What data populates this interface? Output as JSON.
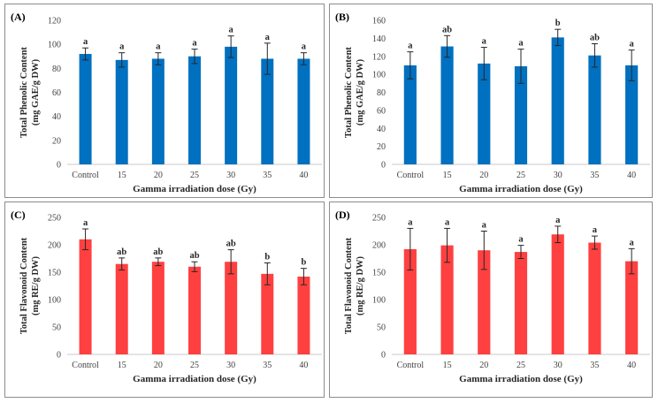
{
  "chart_data": [
    {
      "type": "bar",
      "panel_label": "(A)",
      "categories": [
        "Control",
        "15",
        "20",
        "25",
        "30",
        "35",
        "40"
      ],
      "values": [
        92,
        87,
        88,
        90,
        98,
        88,
        88
      ],
      "errors": [
        5,
        6,
        5,
        6,
        9,
        13,
        5
      ],
      "significance": [
        "a",
        "a",
        "a",
        "a",
        "a",
        "a",
        "a"
      ],
      "color": "#0070C0",
      "ylim": [
        0,
        120
      ],
      "yticks": [
        0,
        20,
        40,
        60,
        80,
        100,
        120
      ],
      "ylabel_line1": "Total Phenolic Content",
      "ylabel_line2": "(mg GAE/g DW)",
      "xlabel": "Gamma irradiation dose (Gy)"
    },
    {
      "type": "bar",
      "panel_label": "(B)",
      "categories": [
        "Control",
        "15",
        "20",
        "25",
        "30",
        "35",
        "40"
      ],
      "values": [
        110,
        131,
        112,
        109,
        141,
        121,
        110
      ],
      "errors": [
        15,
        12,
        18,
        19,
        9,
        13,
        17
      ],
      "significance": [
        "a",
        "ab",
        "a",
        "a",
        "b",
        "ab",
        "a"
      ],
      "color": "#0070C0",
      "ylim": [
        0,
        160
      ],
      "yticks": [
        0,
        20,
        40,
        60,
        80,
        100,
        120,
        140,
        160
      ],
      "ylabel_line1": "Total Phenolic Content",
      "ylabel_line2": "(mg GAE/g DW)",
      "xlabel": "Gamma irradiation dose (Gy)"
    },
    {
      "type": "bar",
      "panel_label": "(C)",
      "categories": [
        "Control",
        "15",
        "20",
        "25",
        "30",
        "35",
        "40"
      ],
      "values": [
        210,
        165,
        169,
        160,
        169,
        147,
        142
      ],
      "errors": [
        19,
        11,
        7,
        9,
        22,
        20,
        15
      ],
      "significance": [
        "a",
        "ab",
        "ab",
        "ab",
        "ab",
        "b",
        "b"
      ],
      "color": "#FF4040",
      "ylim": [
        0,
        250
      ],
      "yticks": [
        0,
        50,
        100,
        150,
        200,
        250
      ],
      "ylabel_line1": "Total Flavonoid Content",
      "ylabel_line2": "(mg RE/g DW)",
      "xlabel": "Gamma irradiation dose (Gy)"
    },
    {
      "type": "bar",
      "panel_label": "(D)",
      "categories": [
        "Control",
        "15",
        "20",
        "25",
        "30",
        "35",
        "40"
      ],
      "values": [
        192,
        199,
        190,
        187,
        219,
        204,
        170
      ],
      "errors": [
        38,
        31,
        35,
        12,
        15,
        12,
        23
      ],
      "significance": [
        "a",
        "a",
        "a",
        "a",
        "a",
        "a",
        "a"
      ],
      "color": "#FF4040",
      "ylim": [
        0,
        250
      ],
      "yticks": [
        0,
        50,
        100,
        150,
        200,
        250
      ],
      "ylabel_line1": "Total Flavonoid Content",
      "ylabel_line2": "(mg RE/g DW)",
      "xlabel": "Gamma irradiation dose (Gy)"
    }
  ]
}
